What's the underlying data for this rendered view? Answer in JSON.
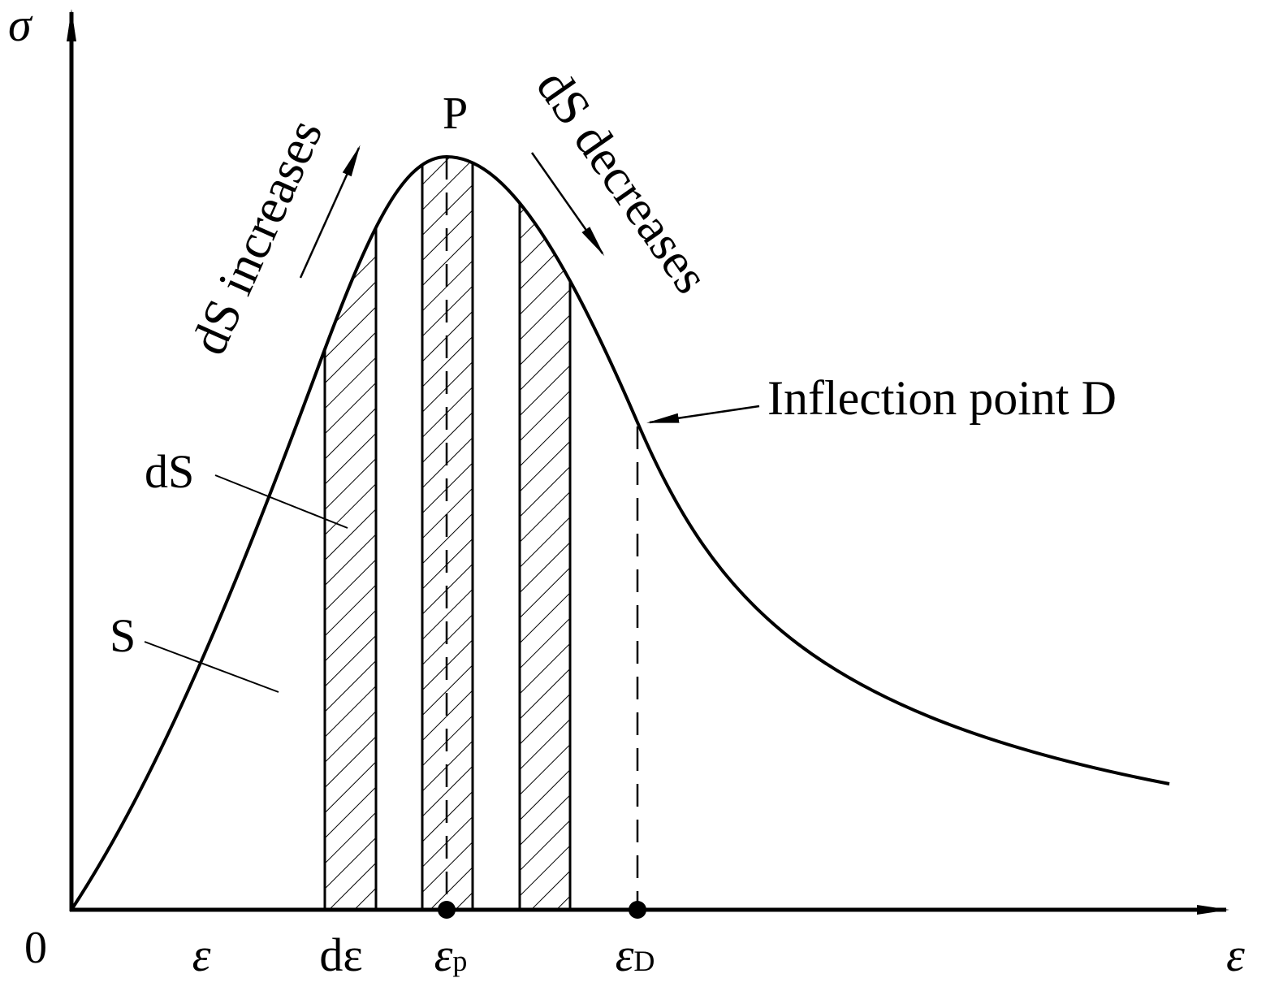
{
  "axes": {
    "y_label": "σ",
    "x_label": "ε",
    "origin": "0"
  },
  "labels": {
    "peak": "P",
    "inflection": "Inflection point D",
    "area": "S",
    "strip": "dS",
    "increases": "dS increases",
    "decreases": "dS decreases"
  },
  "x_marks": [
    {
      "symbol": "ε"
    },
    {
      "symbol": "dε"
    },
    {
      "symbol": "ε",
      "subscript": "p"
    },
    {
      "symbol": "ε",
      "subscript": "D"
    }
  ]
}
